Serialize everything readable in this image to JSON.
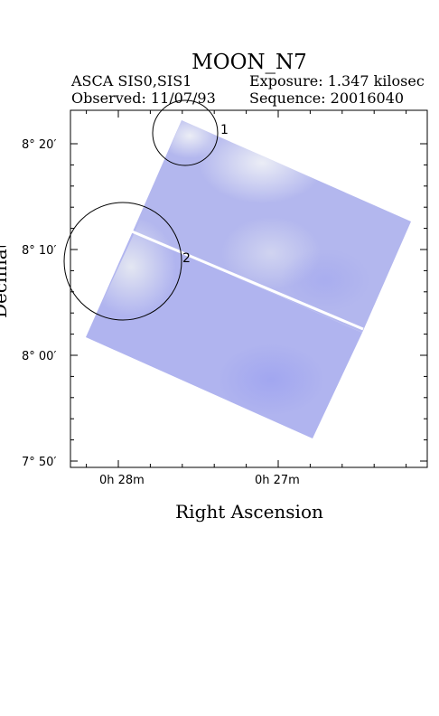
{
  "header": {
    "title": "MOON_N7",
    "instrument": "ASCA SIS0,SIS1",
    "observed": "Observed: 11/07/93",
    "exposure": "Exposure: 1.347 kilosec",
    "sequence": "Sequence: 20016040"
  },
  "axes": {
    "xlabel": "Right Ascension",
    "ylabel": "Declination",
    "dec_ticks": [
      {
        "label": "8° 20′"
      },
      {
        "label": "8° 10′"
      },
      {
        "label": "8° 00′"
      },
      {
        "label": "7° 50′"
      }
    ],
    "ra_ticks": [
      {
        "label": "0h 28m"
      },
      {
        "label": "0h 27m"
      }
    ]
  },
  "sources": [
    {
      "id": "1"
    },
    {
      "id": "2"
    }
  ],
  "colors": {
    "image_blue": "#a9aef0",
    "image_light": "#dfe3f6",
    "gap": "#ffffff"
  }
}
